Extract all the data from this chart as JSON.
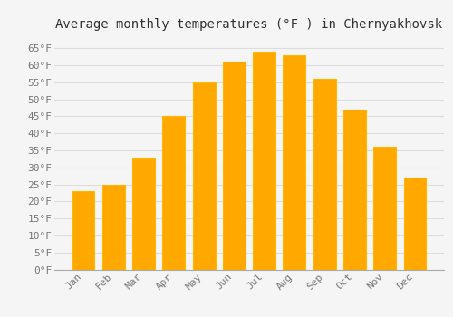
{
  "title": "Average monthly temperatures (°F ) in Chernyakhovsk",
  "months": [
    "Jan",
    "Feb",
    "Mar",
    "Apr",
    "May",
    "Jun",
    "Jul",
    "Aug",
    "Sep",
    "Oct",
    "Nov",
    "Dec"
  ],
  "values": [
    23,
    25,
    33,
    45,
    55,
    61,
    64,
    63,
    56,
    47,
    36,
    27
  ],
  "bar_color": "#FFA800",
  "bar_edge_color": "#FFB800",
  "background_color": "#F5F5F5",
  "grid_color": "#DDDDDD",
  "ylim": [
    0,
    68
  ],
  "yticks": [
    0,
    5,
    10,
    15,
    20,
    25,
    30,
    35,
    40,
    45,
    50,
    55,
    60,
    65
  ],
  "title_fontsize": 10,
  "tick_fontsize": 8,
  "title_color": "#333333",
  "tick_color": "#777777",
  "bar_width": 0.75
}
